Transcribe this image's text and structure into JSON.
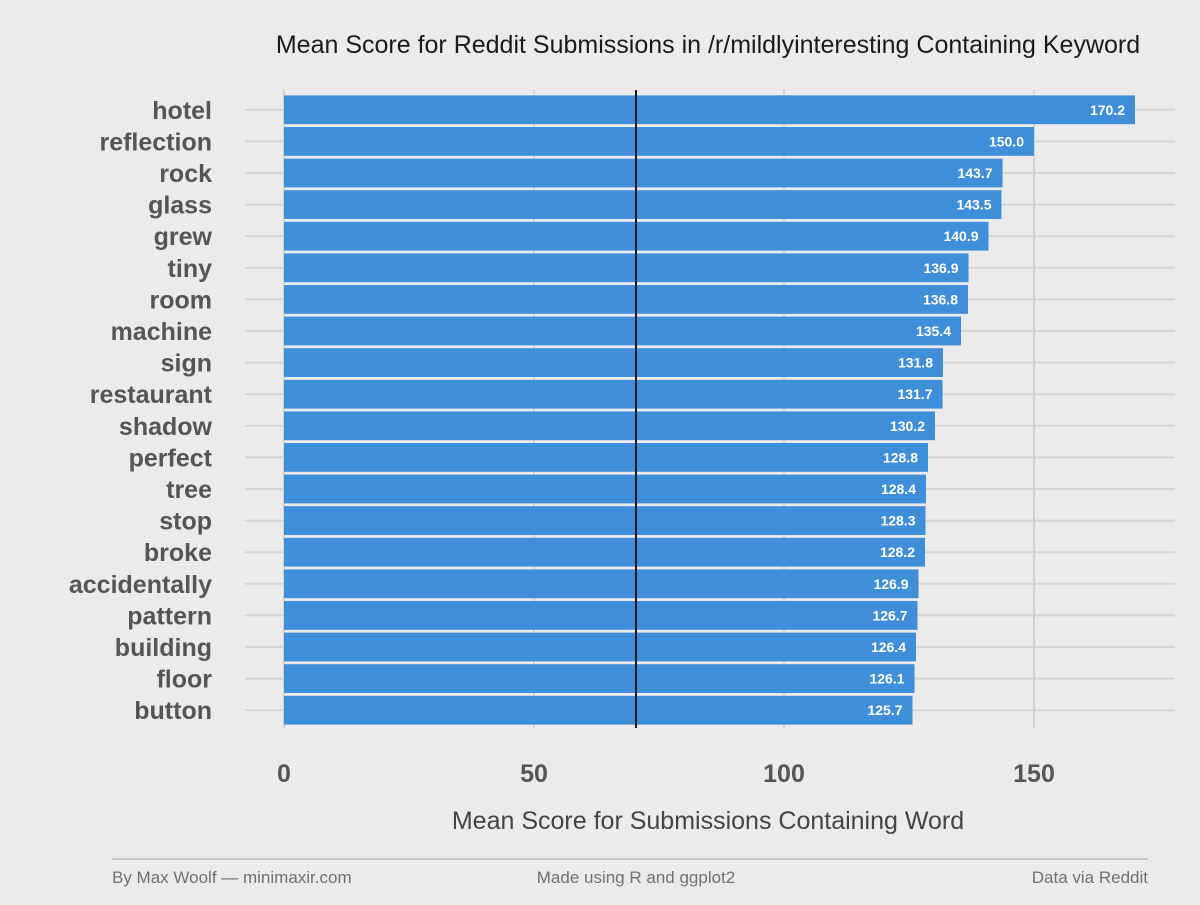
{
  "chart_data": {
    "type": "bar",
    "orientation": "horizontal",
    "title": "Mean Score for Reddit Submissions in /r/mildlyinteresting Containing Keyword",
    "xlabel": "Mean Score for Submissions Containing Word",
    "ylabel": "",
    "xlim": [
      0,
      178
    ],
    "xticks": [
      0,
      50,
      100,
      150
    ],
    "reference_line": 70.4,
    "grid": true,
    "bar_color": "#3f8ed9",
    "categories": [
      "hotel",
      "reflection",
      "rock",
      "glass",
      "grew",
      "tiny",
      "room",
      "machine",
      "sign",
      "restaurant",
      "shadow",
      "perfect",
      "tree",
      "stop",
      "broke",
      "accidentally",
      "pattern",
      "building",
      "floor",
      "button"
    ],
    "values": [
      170.2,
      150.0,
      143.7,
      143.5,
      140.9,
      136.9,
      136.8,
      135.4,
      131.8,
      131.7,
      130.2,
      128.8,
      128.4,
      128.3,
      128.2,
      126.9,
      126.7,
      126.4,
      126.1,
      125.7
    ],
    "labels": [
      "170.2",
      "150.0",
      "143.7",
      "143.5",
      "140.9",
      "136.9",
      "136.8",
      "135.4",
      "131.8",
      "131.7",
      "130.2",
      "128.8",
      "128.4",
      "128.3",
      "128.2",
      "126.9",
      "126.7",
      "126.4",
      "126.1",
      "125.7"
    ]
  },
  "footer": {
    "left": "By Max Woolf — minimaxir.com",
    "center": "Made using R and ggplot2",
    "right": "Data via Reddit"
  }
}
